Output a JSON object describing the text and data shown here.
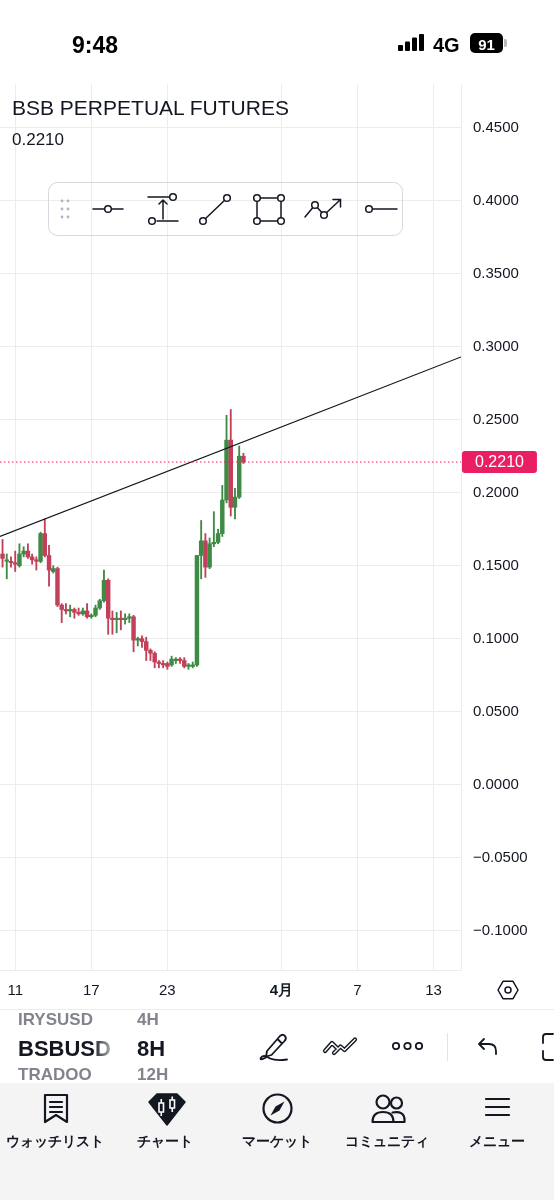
{
  "chart_data": {
    "type": "candlestick",
    "title": "BSB PERPETUAL FUTURES",
    "x": [
      "--03-10T00:00",
      "--03-10T08:00",
      "--03-10T16:00",
      "--03-11T00:00",
      "--03-11T08:00",
      "--03-11T16:00",
      "--03-12T00:00",
      "--03-12T08:00",
      "--03-12T16:00",
      "--03-13T00:00",
      "--03-13T08:00",
      "--03-13T16:00",
      "--03-14T00:00",
      "--03-14T08:00",
      "--03-14T16:00",
      "--03-15T00:00",
      "--03-15T08:00",
      "--03-15T16:00",
      "--03-16T00:00",
      "--03-16T08:00",
      "--03-16T16:00",
      "--03-17T00:00",
      "--03-17T08:00",
      "--03-17T16:00",
      "--03-18T00:00",
      "--03-18T08:00",
      "--03-18T16:00",
      "--03-19T00:00",
      "--03-19T08:00",
      "--03-19T16:00",
      "--03-20T00:00",
      "--03-20T08:00",
      "--03-20T16:00",
      "--03-21T00:00",
      "--03-21T08:00",
      "--03-21T16:00",
      "--03-22T00:00",
      "--03-22T08:00",
      "--03-22T16:00",
      "--03-23T00:00",
      "--03-23T08:00",
      "--03-23T16:00",
      "--03-24T00:00",
      "--03-24T08:00",
      "--03-24T16:00",
      "--03-25T00:00",
      "--03-25T08:00",
      "--03-25T16:00",
      "--03-26T00:00",
      "--03-26T08:00",
      "--03-26T16:00",
      "--03-27T00:00",
      "--03-27T08:00",
      "--03-27T16:00",
      "--03-28T00:00",
      "--03-28T08:00",
      "--03-28T16:00",
      "--03-29T00:00"
    ],
    "ohlc": [
      [
        0.158,
        0.168,
        0.149,
        0.155
      ],
      [
        0.153,
        0.158,
        0.141,
        0.154
      ],
      [
        0.153,
        0.156,
        0.149,
        0.152
      ],
      [
        0.152,
        0.16,
        0.146,
        0.151
      ],
      [
        0.15,
        0.165,
        0.149,
        0.158
      ],
      [
        0.158,
        0.163,
        0.156,
        0.16
      ],
      [
        0.16,
        0.165,
        0.155,
        0.156
      ],
      [
        0.156,
        0.158,
        0.151,
        0.154
      ],
      [
        0.154,
        0.156,
        0.147,
        0.153
      ],
      [
        0.153,
        0.173,
        0.152,
        0.172
      ],
      [
        0.172,
        0.182,
        0.156,
        0.157
      ],
      [
        0.157,
        0.164,
        0.136,
        0.147
      ],
      [
        0.146,
        0.15,
        0.145,
        0.148
      ],
      [
        0.148,
        0.149,
        0.122,
        0.123
      ],
      [
        0.123,
        0.124,
        0.111,
        0.12
      ],
      [
        0.12,
        0.124,
        0.117,
        0.119
      ],
      [
        0.119,
        0.123,
        0.115,
        0.12
      ],
      [
        0.12,
        0.121,
        0.114,
        0.118
      ],
      [
        0.118,
        0.121,
        0.116,
        0.117
      ],
      [
        0.117,
        0.121,
        0.116,
        0.119
      ],
      [
        0.119,
        0.124,
        0.114,
        0.115
      ],
      [
        0.115,
        0.117,
        0.114,
        0.116
      ],
      [
        0.116,
        0.123,
        0.115,
        0.121
      ],
      [
        0.121,
        0.127,
        0.12,
        0.126
      ],
      [
        0.126,
        0.147,
        0.125,
        0.14
      ],
      [
        0.14,
        0.141,
        0.103,
        0.114
      ],
      [
        0.114,
        0.119,
        0.103,
        0.113
      ],
      [
        0.113,
        0.118,
        0.104,
        0.114
      ],
      [
        0.114,
        0.119,
        0.106,
        0.113
      ],
      [
        0.113,
        0.117,
        0.11,
        0.114
      ],
      [
        0.114,
        0.117,
        0.111,
        0.115
      ],
      [
        0.115,
        0.116,
        0.091,
        0.099
      ],
      [
        0.099,
        0.101,
        0.095,
        0.1
      ],
      [
        0.1,
        0.102,
        0.094,
        0.098
      ],
      [
        0.098,
        0.101,
        0.085,
        0.092
      ],
      [
        0.092,
        0.093,
        0.085,
        0.09
      ],
      [
        0.09,
        0.091,
        0.08,
        0.084
      ],
      [
        0.084,
        0.085,
        0.08,
        0.083
      ],
      [
        0.083,
        0.085,
        0.08,
        0.082
      ],
      [
        0.083,
        0.084,
        0.079,
        0.081
      ],
      [
        0.082,
        0.088,
        0.081,
        0.086
      ],
      [
        0.085,
        0.087,
        0.083,
        0.086
      ],
      [
        0.086,
        0.087,
        0.083,
        0.085
      ],
      [
        0.085,
        0.087,
        0.08,
        0.081
      ],
      [
        0.081,
        0.083,
        0.079,
        0.082
      ],
      [
        0.081,
        0.084,
        0.08,
        0.082
      ],
      [
        0.082,
        0.157,
        0.081,
        0.157
      ],
      [
        0.157,
        0.181,
        0.141,
        0.167
      ],
      [
        0.167,
        0.172,
        0.142,
        0.149
      ],
      [
        0.149,
        0.169,
        0.148,
        0.165
      ],
      [
        0.165,
        0.187,
        0.163,
        0.166
      ],
      [
        0.166,
        0.175,
        0.165,
        0.172
      ],
      [
        0.172,
        0.205,
        0.17,
        0.195
      ],
      [
        0.195,
        0.253,
        0.193,
        0.236
      ],
      [
        0.236,
        0.257,
        0.184,
        0.19
      ],
      [
        0.19,
        0.203,
        0.182,
        0.197
      ],
      [
        0.197,
        0.232,
        0.196,
        0.225
      ],
      [
        0.225,
        0.227,
        0.22,
        0.221
      ]
    ],
    "colors": [
      "#c2405a",
      "#3d8b45",
      "#c2405a",
      "#c2405a",
      "#3d8b45",
      "#3d8b45",
      "#c2405a",
      "#c2405a",
      "#c2405a",
      "#3d8b45",
      "#c2405a",
      "#c2405a",
      "#3d8b45",
      "#c2405a",
      "#c2405a",
      "#c2405a",
      "#3d8b45",
      "#c2405a",
      "#c2405a",
      "#3d8b45",
      "#c2405a",
      "#3d8b45",
      "#3d8b45",
      "#3d8b45",
      "#3d8b45",
      "#c2405a",
      "#c2405a",
      "#3d8b45",
      "#c2405a",
      "#3d8b45",
      "#3d8b45",
      "#c2405a",
      "#3d8b45",
      "#c2405a",
      "#c2405a",
      "#c2405a",
      "#c2405a",
      "#c2405a",
      "#c2405a",
      "#c2405a",
      "#3d8b45",
      "#3d8b45",
      "#c2405a",
      "#c2405a",
      "#3d8b45",
      "#3d8b45",
      "#3d8b45",
      "#3d8b45",
      "#c2405a",
      "#3d8b45",
      "#3d8b45",
      "#3d8b45",
      "#3d8b45",
      "#3d8b45",
      "#c2405a",
      "#3d8b45",
      "#3d8b45",
      "#c2405a"
    ],
    "series": [
      {
        "type": "line",
        "x": [
          "--03-09T19:12",
          "--04-15T03:50"
        ],
        "values": [
          0.17,
          0.293
        ],
        "color": "#131722"
      }
    ],
    "xlim": [
      "--03-09T19:12",
      "--04-15T03:50"
    ],
    "xticks": [
      {
        "value": "--03-11",
        "label": "11"
      },
      {
        "value": "--03-17",
        "label": "17"
      },
      {
        "value": "--03-23",
        "label": "23"
      },
      {
        "value": "--04-01",
        "label": "4月"
      },
      {
        "value": "--04-07",
        "label": "7"
      },
      {
        "value": "--04-13",
        "label": "13"
      }
    ],
    "ylim": [
      -0.127,
      0.48
    ],
    "yticks": [
      {
        "value": -0.1,
        "label": "−0.1000"
      },
      {
        "value": -0.05,
        "label": "−0.0500"
      },
      {
        "value": 0,
        "label": "0.0000"
      },
      {
        "value": 0.05,
        "label": "0.0500"
      },
      {
        "value": 0.1,
        "label": "0.1000"
      },
      {
        "value": 0.15,
        "label": "0.1500"
      },
      {
        "value": 0.2,
        "label": "0.2000"
      },
      {
        "value": 0.25,
        "label": "0.2500"
      },
      {
        "value": 0.3,
        "label": "0.3000"
      },
      {
        "value": 0.35,
        "label": "0.3500"
      },
      {
        "value": 0.4,
        "label": "0.4000"
      },
      {
        "value": 0.45,
        "label": "0.4500"
      }
    ],
    "ref_lines": [
      {
        "axis": "y",
        "value": 0.221,
        "label": "0.2210",
        "color": "#e91e63",
        "line_style": "dotted"
      }
    ],
    "grid": true,
    "annotations": [
      "9:48",
      "4G",
      "91",
      "0.2210",
      "IRYSUSD",
      "4H",
      "BSBUSD",
      "8H",
      "TRADOO",
      "12H",
      "ウォッチリスト",
      "チャート",
      "マーケット",
      "コミュニティ",
      "メニュー"
    ]
  }
}
